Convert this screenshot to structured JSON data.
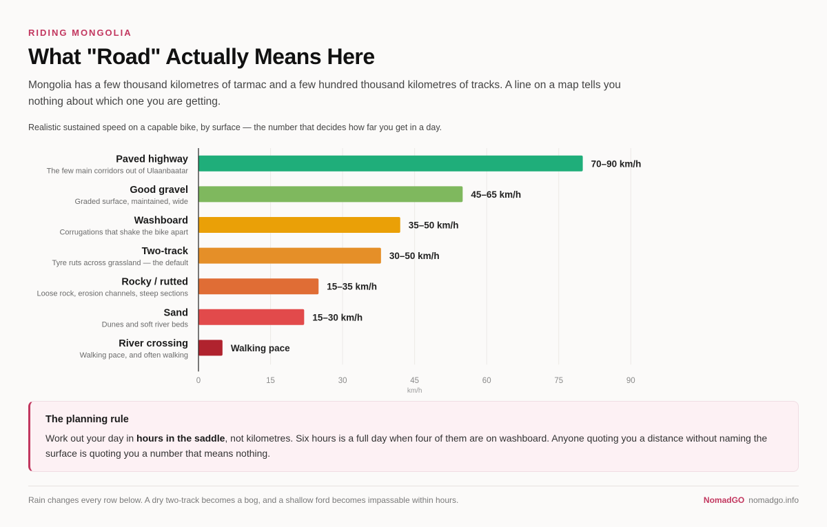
{
  "header": {
    "eyebrow": "RIDING MONGOLIA",
    "title": "What \"Road\" Actually Means Here",
    "intro": "Mongolia has a few thousand kilometres of tarmac and a few hundred thousand kilometres of tracks. A line on a map tells you nothing about which one you are getting.",
    "caption": "Realistic sustained speed on a capable bike, by surface — the number that decides how far you get in a day."
  },
  "chart_data": {
    "type": "bar",
    "orientation": "horizontal",
    "xlabel": "km/h",
    "xlim": [
      0,
      90
    ],
    "ticks": [
      0,
      15,
      30,
      45,
      60,
      75,
      90
    ],
    "grid": true,
    "categories": [
      {
        "name": "Paved highway",
        "desc": "The few main corridors out of Ulaanbaatar",
        "value": 80,
        "label": "70–90 km/h",
        "color": "#1fae7a"
      },
      {
        "name": "Good gravel",
        "desc": "Graded surface, maintained, wide",
        "value": 55,
        "label": "45–65 km/h",
        "color": "#7fb85e"
      },
      {
        "name": "Washboard",
        "desc": "Corrugations that shake the bike apart",
        "value": 42,
        "label": "35–50 km/h",
        "color": "#eaa007"
      },
      {
        "name": "Two-track",
        "desc": "Tyre ruts across grassland — the default",
        "value": 38,
        "label": "30–50 km/h",
        "color": "#e58f28"
      },
      {
        "name": "Rocky / rutted",
        "desc": "Loose rock, erosion channels, steep sections",
        "value": 25,
        "label": "15–35 km/h",
        "color": "#e06d35"
      },
      {
        "name": "Sand",
        "desc": "Dunes and soft river beds",
        "value": 22,
        "label": "15–30 km/h",
        "color": "#e24a4b"
      },
      {
        "name": "River crossing",
        "desc": "Walking pace, and often walking",
        "value": 5,
        "label": "Walking pace",
        "color": "#b0232e"
      }
    ]
  },
  "callout": {
    "title": "The planning rule",
    "body_pre": "Work out your day in ",
    "body_bold": "hours in the saddle",
    "body_post": ", not kilometres. Six hours is a full day when four of them are on washboard. Anyone quoting you a distance without naming the surface is quoting you a number that means nothing."
  },
  "footer": {
    "note": "Rain changes every row below. A dry two-track becomes a bog, and a shallow ford becomes impassable within hours.",
    "brand": "NomadGO",
    "site": "nomadgo.info"
  }
}
